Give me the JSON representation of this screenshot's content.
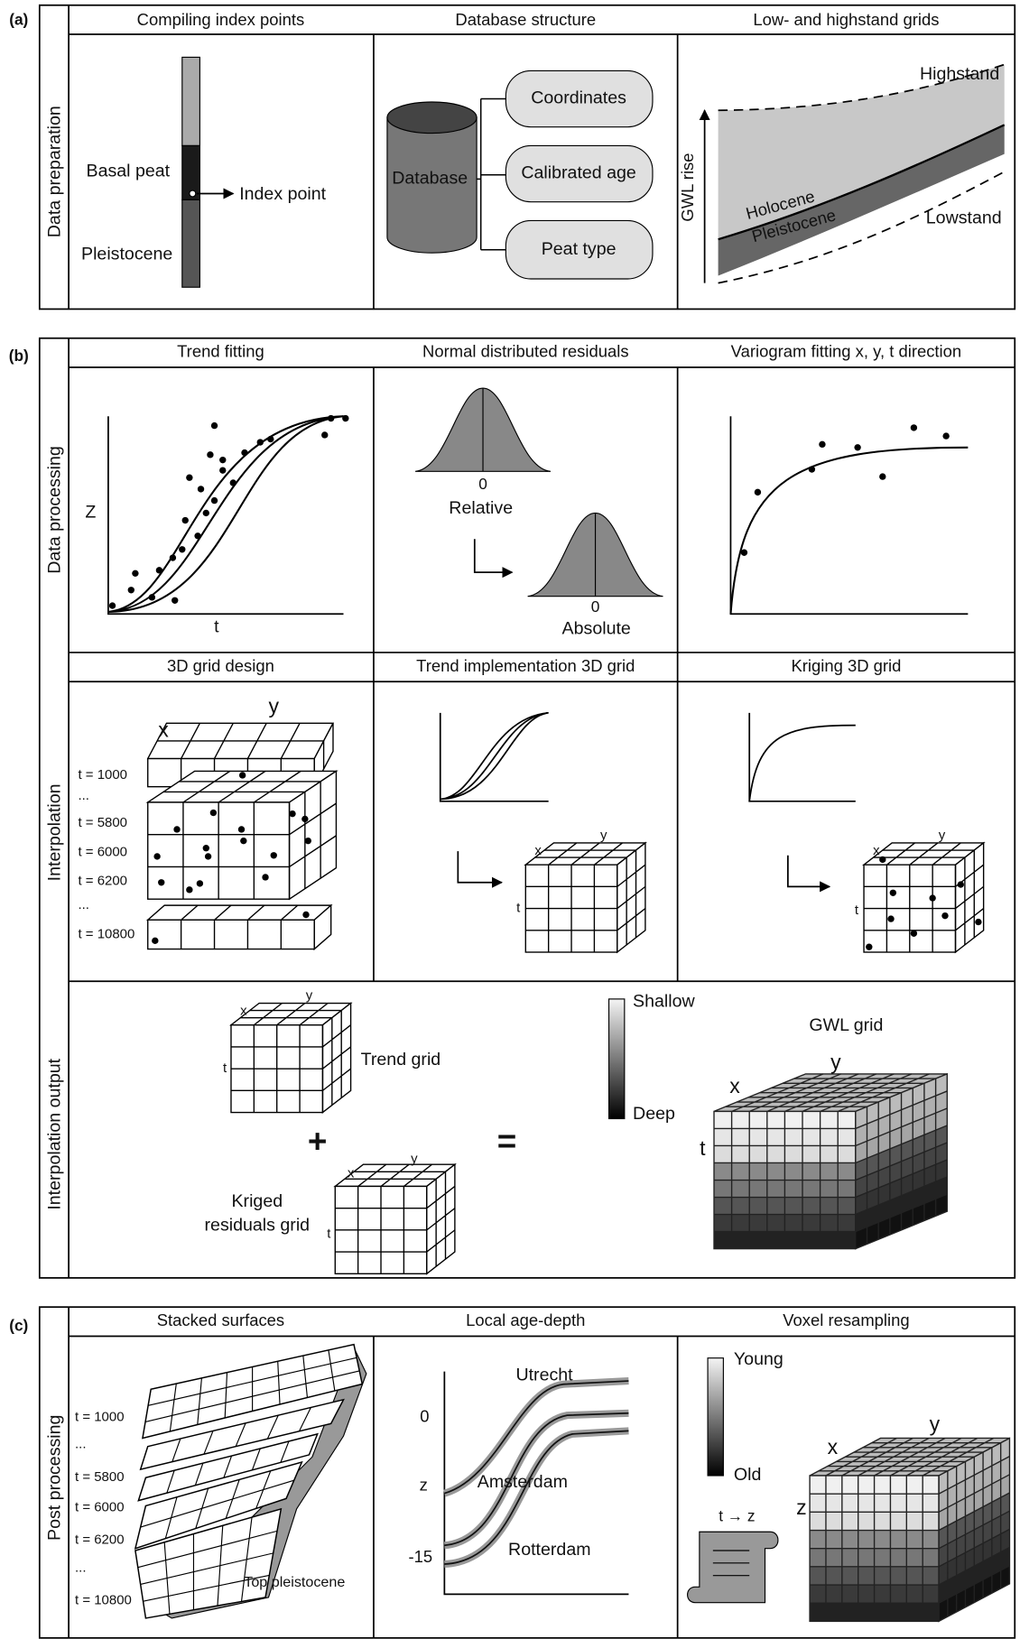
{
  "panel_a": {
    "label": "(a)",
    "row_label": "Data preparation",
    "headers": [
      "Compiling index points",
      "Database structure",
      "Low- and highstand grids"
    ],
    "index_points": {
      "basal_peat": "Basal peat",
      "index_point": "Index point",
      "pleistocene": "Pleistocene"
    },
    "database": {
      "name": "Database",
      "fields": [
        "Coordinates",
        "Calibrated age",
        "Peat type"
      ]
    },
    "grids": {
      "highstand": "Highstand",
      "lowstand": "Lowstand",
      "axis": "GWL rise",
      "holocene": "Holocene",
      "pleistocene": "Pleistocene"
    }
  },
  "panel_b": {
    "label": "(b)",
    "row_labels": [
      "Data processing",
      "Interpolation",
      "Interpolation output"
    ],
    "headers": [
      "Trend fitting",
      "Normal distributed residuals",
      "Variogram fitting  x, y, t direction",
      "3D grid design",
      "Trend implementation 3D grid",
      "Kriging 3D grid"
    ],
    "trend": {
      "y_axis": "Z",
      "x_axis": "t"
    },
    "residuals": {
      "relative_zero": "0",
      "relative": "Relative",
      "absolute_zero": "0",
      "absolute": "Absolute"
    },
    "grid_design": {
      "x": "x",
      "y": "y",
      "times": [
        "t = 1000",
        "...",
        "t = 5800",
        "t = 6000",
        "t = 6200",
        "...",
        "t = 10800"
      ]
    },
    "trend_grid_axes": [
      "x",
      "y",
      "t"
    ],
    "kriging_grid_axes": [
      "x",
      "y",
      "t"
    ],
    "output": {
      "trend_axes": [
        "x",
        "y",
        "t"
      ],
      "trend": "Trend grid",
      "plus": "+",
      "equals": "=",
      "kriged": [
        "Kriged",
        "residuals grid"
      ],
      "kriged_axes": [
        "x",
        "y",
        "t"
      ],
      "shallow": "Shallow",
      "deep": "Deep",
      "gwl": "GWL grid",
      "gwl_axes": [
        "x",
        "y",
        "t"
      ]
    }
  },
  "panel_c": {
    "label": "(c)",
    "row_label": "Post processing",
    "headers": [
      "Stacked surfaces",
      "Local age-depth",
      "Voxel resampling"
    ],
    "times": [
      "t = 1000",
      "...",
      "t = 5800",
      "t = 6000",
      "t = 6200",
      "...",
      "t = 10800"
    ],
    "top_pleistocene": "Top pleistocene",
    "age_depth": {
      "utrecht": "Utrecht",
      "amsterdam": "Amsterdam",
      "rotterdam": "Rotterdam",
      "zero": "0",
      "axis": "z",
      "minus": "-15"
    },
    "voxel": {
      "young": "Young",
      "old": "Old",
      "conversion": "t → z",
      "axes": [
        "x",
        "y",
        "z"
      ]
    }
  }
}
